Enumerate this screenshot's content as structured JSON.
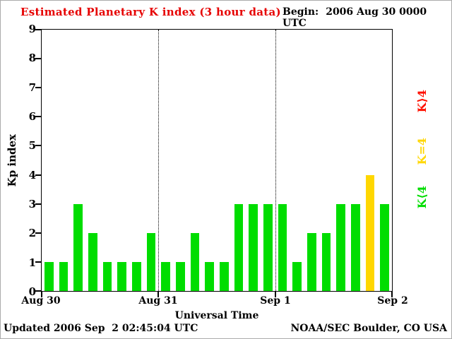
{
  "header": {
    "title": "Estimated Planetary K index (3 hour data)",
    "begin_label": "Begin:",
    "begin_value": "2006 Aug 30 0000 UTC"
  },
  "axes": {
    "ylabel": "Kp index",
    "xlabel": "Universal Time"
  },
  "legend": [
    {
      "label": "K⟩4",
      "color": "#ff1000"
    },
    {
      "label": "K=4",
      "color": "#ffd700"
    },
    {
      "label": "K⟨4",
      "color": "#00dd00"
    }
  ],
  "footer": {
    "updated": "Updated 2006 Sep  2 02:45:04 UTC",
    "source": "NOAA/SEC Boulder, CO USA"
  },
  "colors": {
    "title": "#e60000",
    "text": "#000000",
    "background": "#ffffff",
    "bar_low": "#00dd00",
    "bar_mid": "#ffd700",
    "bar_high": "#ff1000"
  },
  "chart_data": {
    "type": "bar",
    "title": "Estimated Planetary K index (3 hour data)",
    "xlabel": "Universal Time",
    "ylabel": "Kp index",
    "ylim": [
      0,
      9
    ],
    "y_ticks": [
      0,
      1,
      2,
      3,
      4,
      5,
      6,
      7,
      8,
      9
    ],
    "x_ticks": [
      "Aug 30",
      "Aug 31",
      "Sep 1",
      "Sep 2"
    ],
    "bin_hours": 3,
    "values": [
      1,
      1,
      3,
      2,
      1,
      1,
      1,
      2,
      1,
      1,
      2,
      1,
      1,
      3,
      3,
      3,
      3,
      1,
      2,
      2,
      3,
      3,
      4,
      3
    ],
    "color_rule": "green if K<4, yellow if K=4, red if K>4",
    "legend_position": "right",
    "grid": "dotted vertical lines at day boundaries"
  }
}
